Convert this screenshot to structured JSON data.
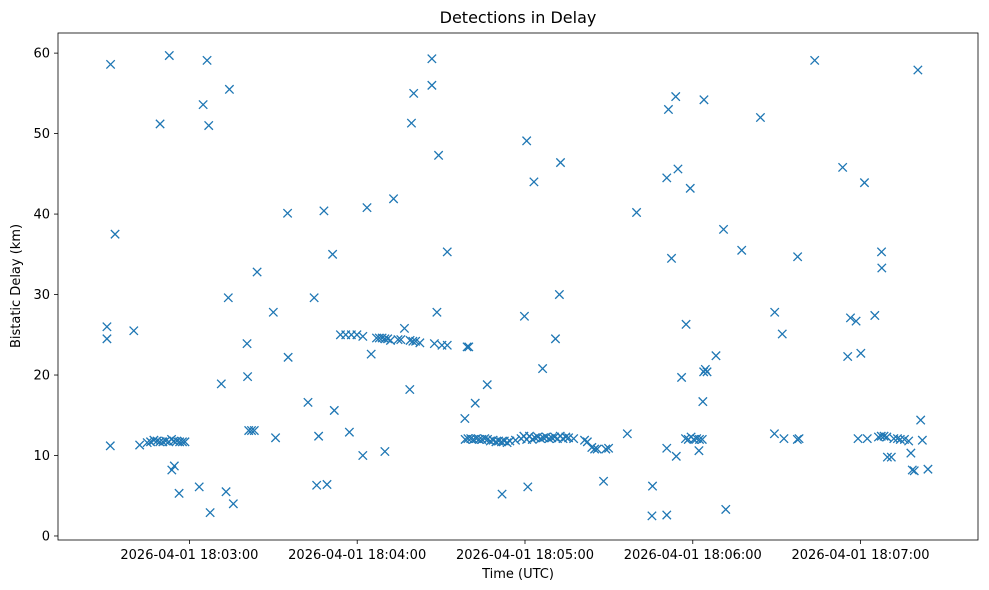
{
  "chart_data": {
    "type": "scatter",
    "title": "Detections in Delay",
    "xlabel": "Time (UTC)",
    "ylabel": "Bistatic Delay (km)",
    "marker": "x",
    "color": "#1f77b4",
    "grid": false,
    "xlim_seconds_from_18_02_00": [
      -17,
      312
    ],
    "ylim": [
      -0.5,
      62.5
    ],
    "xticks": [
      {
        "value": 30,
        "label": "2026-04-01 18:03:00"
      },
      {
        "value": 90,
        "label": "2026-04-01 18:04:00"
      },
      {
        "value": 150,
        "label": "2026-04-01 18:05:00"
      },
      {
        "value": 210,
        "label": "2026-04-01 18:06:00"
      },
      {
        "value": 270,
        "label": "2026-04-01 18:07:00"
      }
    ],
    "yticks": [
      0,
      10,
      20,
      30,
      40,
      50,
      60
    ],
    "series": [
      {
        "name": "Detections",
        "points": [
          [
            0.5,
            26
          ],
          [
            0.5,
            24.5
          ],
          [
            1.7,
            11.2
          ],
          [
            1.8,
            58.6
          ],
          [
            3.4,
            37.5
          ],
          [
            10.1,
            25.5
          ],
          [
            12.2,
            11.3
          ],
          [
            14.9,
            11.6
          ],
          [
            16.1,
            11.7
          ],
          [
            17.3,
            11.9
          ],
          [
            18.4,
            11.8
          ],
          [
            19.4,
            11.7
          ],
          [
            20.5,
            11.7
          ],
          [
            21.5,
            11.8
          ],
          [
            22.6,
            11.7
          ],
          [
            23.6,
            12
          ],
          [
            24.5,
            11.8
          ],
          [
            25.5,
            11.8
          ],
          [
            26.5,
            11.7
          ],
          [
            27.5,
            11.7
          ],
          [
            28.4,
            11.7
          ],
          [
            19.5,
            51.2
          ],
          [
            22.8,
            59.7
          ],
          [
            23.7,
            8.2
          ],
          [
            24.6,
            8.7
          ],
          [
            26.3,
            5.3
          ],
          [
            33.5,
            6.1
          ],
          [
            34.9,
            53.6
          ],
          [
            36.3,
            59.1
          ],
          [
            36.9,
            51
          ],
          [
            37.4,
            2.9
          ],
          [
            41.4,
            18.9
          ],
          [
            43.1,
            5.5
          ],
          [
            43.9,
            29.6
          ],
          [
            44.3,
            55.5
          ],
          [
            45.7,
            4
          ],
          [
            50.6,
            23.9
          ],
          [
            50.8,
            19.8
          ],
          [
            51.2,
            13.1
          ],
          [
            52.2,
            13.1
          ],
          [
            53.2,
            13.1
          ],
          [
            54.2,
            32.8
          ],
          [
            60,
            27.8
          ],
          [
            60.8,
            12.2
          ],
          [
            65.1,
            40.1
          ],
          [
            65.3,
            22.2
          ],
          [
            72.4,
            16.6
          ],
          [
            74.6,
            29.6
          ],
          [
            75.5,
            6.3
          ],
          [
            76.2,
            12.4
          ],
          [
            78.1,
            40.4
          ],
          [
            79.2,
            6.4
          ],
          [
            81.2,
            35
          ],
          [
            81.8,
            15.6
          ],
          [
            84,
            25
          ],
          [
            85.9,
            25
          ],
          [
            87.9,
            25
          ],
          [
            89.9,
            25
          ],
          [
            87.2,
            12.9
          ],
          [
            92,
            24.8
          ],
          [
            92,
            10
          ],
          [
            93.5,
            40.8
          ],
          [
            95,
            22.6
          ],
          [
            96.9,
            24.6
          ],
          [
            97.9,
            24.6
          ],
          [
            98.9,
            24.6
          ],
          [
            99.9,
            24.5
          ],
          [
            100.9,
            24.5
          ],
          [
            101.9,
            24.3
          ],
          [
            99.9,
            10.5
          ],
          [
            103,
            41.9
          ],
          [
            104.6,
            24.4
          ],
          [
            105.6,
            24.4
          ],
          [
            106.9,
            25.8
          ],
          [
            108.9,
            24.3
          ],
          [
            109.9,
            24.2
          ],
          [
            110.9,
            24.2
          ],
          [
            112.4,
            24
          ],
          [
            108.8,
            18.2
          ],
          [
            109.4,
            51.3
          ],
          [
            110.2,
            55
          ],
          [
            116.7,
            59.3
          ],
          [
            116.7,
            56
          ],
          [
            117.6,
            23.9
          ],
          [
            118.5,
            27.8
          ],
          [
            119.1,
            47.3
          ],
          [
            120.3,
            23.7
          ],
          [
            122.2,
            23.7
          ],
          [
            122.2,
            35.3
          ],
          [
            128.5,
            14.6
          ],
          [
            128.6,
            12
          ],
          [
            129.3,
            23.5
          ],
          [
            129.9,
            23.5
          ],
          [
            129.6,
            12.1
          ],
          [
            130.6,
            12.1
          ],
          [
            131.6,
            12
          ],
          [
            132.6,
            12.1
          ],
          [
            133.6,
            12
          ],
          [
            134.6,
            12
          ],
          [
            135.6,
            12.1
          ],
          [
            136.6,
            12
          ],
          [
            137.6,
            11.8
          ],
          [
            138.6,
            11.9
          ],
          [
            139.6,
            11.7
          ],
          [
            140.6,
            11.8
          ],
          [
            141.6,
            11.7
          ],
          [
            142.6,
            11.8
          ],
          [
            143.6,
            11.6
          ],
          [
            144.6,
            11.8
          ],
          [
            132.2,
            16.5
          ],
          [
            136.5,
            18.8
          ],
          [
            141.8,
            5.2
          ],
          [
            146.6,
            11.9
          ],
          [
            148.6,
            12.1
          ],
          [
            149.6,
            12.4
          ],
          [
            150.6,
            12
          ],
          [
            151.6,
            12.4
          ],
          [
            152.6,
            12
          ],
          [
            153.6,
            12.2
          ],
          [
            154.6,
            12.3
          ],
          [
            155.6,
            12.1
          ],
          [
            156.6,
            12.2
          ],
          [
            157.6,
            12.3
          ],
          [
            158.6,
            12.1
          ],
          [
            159.6,
            12.2
          ],
          [
            160.6,
            12.3
          ],
          [
            161.6,
            12.1
          ],
          [
            162.6,
            12.4
          ],
          [
            163.6,
            12.1
          ],
          [
            164.6,
            12.3
          ],
          [
            165.6,
            12.2
          ],
          [
            167.4,
            12.1
          ],
          [
            149.8,
            27.3
          ],
          [
            150.6,
            49.1
          ],
          [
            151,
            6.1
          ],
          [
            153.2,
            44
          ],
          [
            156.3,
            20.8
          ],
          [
            160.9,
            24.5
          ],
          [
            162.3,
            30
          ],
          [
            162.7,
            46.4
          ],
          [
            171.3,
            11.9
          ],
          [
            172.3,
            11.7
          ],
          [
            173.9,
            11
          ],
          [
            174.9,
            10.8
          ],
          [
            175.8,
            10.8
          ],
          [
            178.9,
            10.8
          ],
          [
            179.9,
            10.9
          ],
          [
            178.1,
            6.8
          ],
          [
            186.6,
            12.7
          ],
          [
            189.9,
            40.2
          ],
          [
            195.6,
            6.2
          ],
          [
            195.4,
            2.5
          ],
          [
            200.7,
            2.6
          ],
          [
            200.7,
            10.9
          ],
          [
            200.7,
            44.5
          ],
          [
            201.3,
            53
          ],
          [
            202.4,
            34.5
          ],
          [
            203.9,
            54.6
          ],
          [
            204.1,
            9.9
          ],
          [
            204.7,
            45.6
          ],
          [
            206,
            19.7
          ],
          [
            207.4,
            12.1
          ],
          [
            208.4,
            12
          ],
          [
            209.4,
            12.3
          ],
          [
            210.4,
            12
          ],
          [
            211.4,
            12.1
          ],
          [
            212.4,
            12
          ],
          [
            213.4,
            12
          ],
          [
            207.6,
            26.3
          ],
          [
            209.1,
            43.2
          ],
          [
            212.2,
            10.6
          ],
          [
            213.6,
            16.7
          ],
          [
            214,
            54.2
          ],
          [
            213.9,
            20.4
          ],
          [
            214.5,
            20.7
          ],
          [
            215.1,
            20.4
          ],
          [
            218.3,
            22.4
          ],
          [
            221,
            38.1
          ],
          [
            221.8,
            3.3
          ],
          [
            227.5,
            35.5
          ],
          [
            234.2,
            52
          ],
          [
            239.3,
            27.8
          ],
          [
            239.2,
            12.7
          ],
          [
            242,
            25.1
          ],
          [
            242.6,
            12.1
          ],
          [
            247.4,
            12
          ],
          [
            248,
            12.1
          ],
          [
            247.5,
            34.7
          ],
          [
            253.6,
            59.1
          ],
          [
            263.6,
            45.8
          ],
          [
            265.4,
            22.3
          ],
          [
            266.4,
            27.1
          ],
          [
            268.4,
            26.7
          ],
          [
            269.1,
            12.1
          ],
          [
            270.1,
            22.7
          ],
          [
            271.4,
            43.9
          ],
          [
            272.4,
            12.1
          ],
          [
            275.1,
            27.4
          ],
          [
            276.4,
            12.3
          ],
          [
            277.4,
            12.4
          ],
          [
            278.4,
            12.4
          ],
          [
            279.4,
            12.3
          ],
          [
            277.5,
            35.3
          ],
          [
            277.6,
            33.3
          ],
          [
            279.6,
            9.8
          ],
          [
            281,
            9.8
          ],
          [
            281.9,
            12.1
          ],
          [
            283.2,
            12.1
          ],
          [
            284.2,
            12
          ],
          [
            285.7,
            12
          ],
          [
            287.2,
            11.8
          ],
          [
            288,
            10.3
          ],
          [
            288.5,
            8.2
          ],
          [
            289.2,
            8.1
          ],
          [
            290.5,
            57.9
          ],
          [
            291.5,
            14.4
          ],
          [
            292.1,
            11.9
          ],
          [
            294.1,
            8.3
          ]
        ]
      }
    ]
  }
}
